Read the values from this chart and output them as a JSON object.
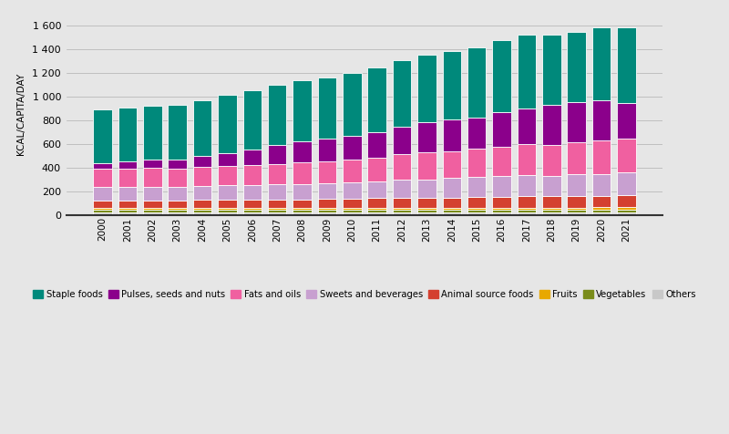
{
  "years": [
    2000,
    2001,
    2002,
    2003,
    2004,
    2005,
    2006,
    2007,
    2008,
    2009,
    2010,
    2011,
    2012,
    2013,
    2014,
    2015,
    2016,
    2017,
    2018,
    2019,
    2020,
    2021
  ],
  "categories": [
    "Others",
    "Vegetables",
    "Fruits",
    "Animal source foods",
    "Sweets and beverages",
    "Fats and oils",
    "Pulses, seeds and nuts",
    "Staple foods"
  ],
  "colors": [
    "#c8c8c8",
    "#7a8c1a",
    "#e8a800",
    "#d44030",
    "#c8a0d0",
    "#f060a0",
    "#8b008b",
    "#00897b"
  ],
  "legend_order": [
    "Staple foods",
    "Pulses, seeds and nuts",
    "Fats and oils",
    "Sweets and beverages",
    "Animal source foods",
    "Fruits",
    "Vegetables",
    "Others"
  ],
  "legend_colors": [
    "#00897b",
    "#8b008b",
    "#f060a0",
    "#c8a0d0",
    "#d44030",
    "#e8a800",
    "#7a8c1a",
    "#c8c8c8"
  ],
  "data": {
    "Staple foods": [
      450,
      460,
      460,
      460,
      475,
      490,
      500,
      510,
      515,
      520,
      530,
      550,
      560,
      570,
      580,
      595,
      605,
      625,
      590,
      595,
      615,
      640
    ],
    "Pulses, seeds and nuts": [
      50,
      60,
      65,
      75,
      90,
      110,
      130,
      160,
      175,
      190,
      200,
      215,
      235,
      255,
      270,
      260,
      295,
      295,
      340,
      340,
      345,
      305
    ],
    "Fats and oils": [
      155,
      155,
      165,
      155,
      160,
      165,
      170,
      170,
      185,
      185,
      195,
      200,
      215,
      225,
      225,
      240,
      250,
      265,
      260,
      268,
      278,
      285
    ],
    "Sweets and beverages": [
      115,
      115,
      115,
      115,
      120,
      125,
      125,
      130,
      130,
      135,
      140,
      140,
      155,
      155,
      165,
      170,
      175,
      180,
      175,
      185,
      185,
      190
    ],
    "Animal source foods": [
      60,
      60,
      60,
      65,
      65,
      65,
      70,
      70,
      70,
      75,
      75,
      80,
      80,
      85,
      85,
      90,
      90,
      95,
      95,
      100,
      100,
      105
    ],
    "Fruits": [
      18,
      18,
      18,
      18,
      19,
      19,
      19,
      19,
      19,
      19,
      20,
      20,
      20,
      20,
      21,
      21,
      21,
      21,
      21,
      21,
      22,
      22
    ],
    "Vegetables": [
      20,
      20,
      20,
      20,
      20,
      20,
      20,
      20,
      20,
      20,
      20,
      20,
      20,
      20,
      20,
      20,
      20,
      20,
      20,
      20,
      20,
      20
    ],
    "Others": [
      20,
      20,
      20,
      20,
      20,
      20,
      20,
      20,
      20,
      20,
      20,
      20,
      20,
      20,
      20,
      20,
      20,
      20,
      20,
      20,
      20,
      20
    ]
  },
  "ylabel": "KCAL/CAPITA/DAY",
  "ylim": [
    0,
    1700
  ],
  "yticks": [
    0,
    200,
    400,
    600,
    800,
    1000,
    1200,
    1400,
    1600
  ],
  "background_color": "#e6e6e6",
  "bar_edge_color": "#ffffff",
  "bar_width": 0.75
}
